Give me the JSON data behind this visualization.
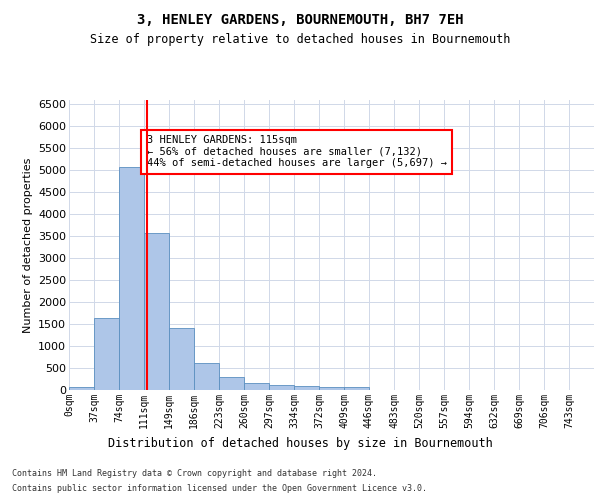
{
  "title": "3, HENLEY GARDENS, BOURNEMOUTH, BH7 7EH",
  "subtitle": "Size of property relative to detached houses in Bournemouth",
  "xlabel": "Distribution of detached houses by size in Bournemouth",
  "ylabel": "Number of detached properties",
  "footer_line1": "Contains HM Land Registry data © Crown copyright and database right 2024.",
  "footer_line2": "Contains public sector information licensed under the Open Government Licence v3.0.",
  "bar_labels": [
    "0sqm",
    "37sqm",
    "74sqm",
    "111sqm",
    "149sqm",
    "186sqm",
    "223sqm",
    "260sqm",
    "297sqm",
    "334sqm",
    "372sqm",
    "409sqm",
    "446sqm",
    "483sqm",
    "520sqm",
    "557sqm",
    "594sqm",
    "632sqm",
    "669sqm",
    "706sqm",
    "743sqm"
  ],
  "bar_values": [
    75,
    1630,
    5075,
    3575,
    1410,
    615,
    290,
    150,
    110,
    80,
    60,
    60,
    0,
    0,
    0,
    0,
    0,
    0,
    0,
    0,
    0
  ],
  "bar_color": "#aec6e8",
  "bar_edge_color": "#5a8fc0",
  "grid_color": "#d0d8e8",
  "property_line_x": 115,
  "property_line_color": "red",
  "annotation_text": "3 HENLEY GARDENS: 115sqm\n← 56% of detached houses are smaller (7,132)\n44% of semi-detached houses are larger (5,697) →",
  "annotation_box_color": "white",
  "annotation_box_edge_color": "red",
  "ylim": [
    0,
    6600
  ],
  "bin_width": 37,
  "yticks": [
    0,
    500,
    1000,
    1500,
    2000,
    2500,
    3000,
    3500,
    4000,
    4500,
    5000,
    5500,
    6000,
    6500
  ]
}
